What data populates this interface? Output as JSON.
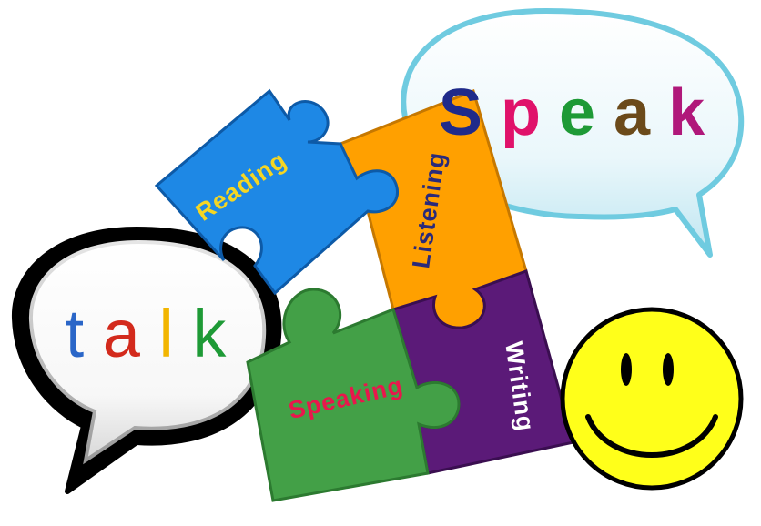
{
  "talk_bubble": {
    "letters": [
      {
        "char": "t",
        "color": "#2a66c8"
      },
      {
        "char": "a",
        "color": "#d32a1c"
      },
      {
        "char": "l",
        "color": "#f2b500"
      },
      {
        "char": "k",
        "color": "#1e9a36"
      }
    ]
  },
  "speak_bubble": {
    "letters": [
      {
        "char": "S",
        "color": "#1f2a8a"
      },
      {
        "char": "p",
        "color": "#e0126a"
      },
      {
        "char": "e",
        "color": "#1e9a36"
      },
      {
        "char": "a",
        "color": "#6b4a1a"
      },
      {
        "char": "k",
        "color": "#b0187a"
      }
    ]
  },
  "puzzle": {
    "reading": {
      "label": "Reading",
      "color": "#1e88e5",
      "text_color": "#f5d623"
    },
    "listening": {
      "label": "Listening",
      "color": "#ffa000",
      "text_color": "#2a2a7a"
    },
    "speaking": {
      "label": "Speaking",
      "color": "#43a047",
      "text_color": "#e8174c"
    },
    "writing": {
      "label": "Writing",
      "color": "#5b1a78",
      "text_color": "#ffffff"
    }
  },
  "smiley": {
    "face_color": "#ffff1a",
    "outline_color": "#000000"
  }
}
